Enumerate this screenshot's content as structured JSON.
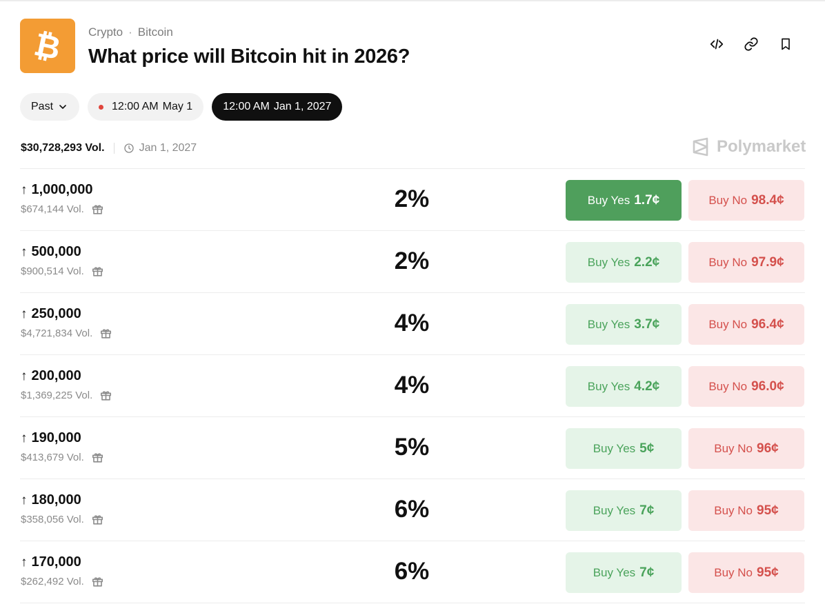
{
  "logo": {
    "icon": "bitcoin-icon",
    "glyph": "₿",
    "bg": "#f39c34"
  },
  "breadcrumb": {
    "category": "Crypto",
    "separator": "·",
    "subcategory": "Bitcoin"
  },
  "title": "What price will Bitcoin hit in 2026?",
  "header_icons": [
    "code-embed-icon",
    "link-icon",
    "bookmark-icon"
  ],
  "date_filter": {
    "past_label": "Past",
    "pill1": {
      "time": "12:00 AM",
      "date": "May 1"
    },
    "pill2": {
      "time": "12:00 AM",
      "date": "Jan 1, 2027"
    }
  },
  "stats": {
    "volume": "$30,728,293 Vol.",
    "end_date": "Jan 1, 2027"
  },
  "brand": "Polymarket",
  "colors": {
    "yes": "#4aa35b",
    "yes_active_bg": "#4f9f5c",
    "no": "#d4504c",
    "accent": "#f39c34"
  },
  "markets": [
    {
      "name": "1,000,000",
      "volume": "$674,144 Vol.",
      "chance": "2%",
      "yes_label": "Buy Yes",
      "yes_price": "1.7¢",
      "no_label": "Buy No",
      "no_price": "98.4¢"
    },
    {
      "name": "500,000",
      "volume": "$900,514 Vol.",
      "chance": "2%",
      "yes_label": "Buy Yes",
      "yes_price": "2.2¢",
      "no_label": "Buy No",
      "no_price": "97.9¢"
    },
    {
      "name": "250,000",
      "volume": "$4,721,834 Vol.",
      "chance": "4%",
      "yes_label": "Buy Yes",
      "yes_price": "3.7¢",
      "no_label": "Buy No",
      "no_price": "96.4¢"
    },
    {
      "name": "200,000",
      "volume": "$1,369,225 Vol.",
      "chance": "4%",
      "yes_label": "Buy Yes",
      "yes_price": "4.2¢",
      "no_label": "Buy No",
      "no_price": "96.0¢"
    },
    {
      "name": "190,000",
      "volume": "$413,679 Vol.",
      "chance": "5%",
      "yes_label": "Buy Yes",
      "yes_price": "5¢",
      "no_label": "Buy No",
      "no_price": "96¢"
    },
    {
      "name": "180,000",
      "volume": "$358,056 Vol.",
      "chance": "6%",
      "yes_label": "Buy Yes",
      "yes_price": "7¢",
      "no_label": "Buy No",
      "no_price": "95¢"
    },
    {
      "name": "170,000",
      "volume": "$262,492 Vol.",
      "chance": "6%",
      "yes_label": "Buy Yes",
      "yes_price": "7¢",
      "no_label": "Buy No",
      "no_price": "95¢"
    }
  ]
}
